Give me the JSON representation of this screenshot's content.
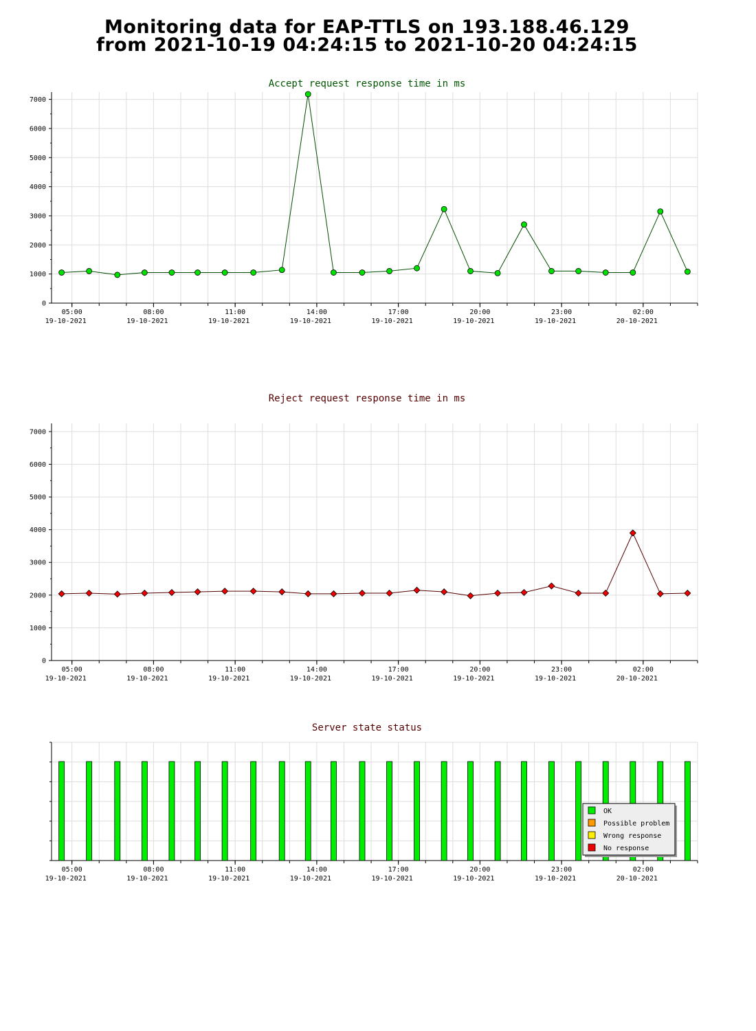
{
  "header": {
    "title_line1": "Monitoring data for EAP-TTLS on 193.188.46.129",
    "title_line2": "from 2021-10-19 04:24:15 to 2021-10-20 04:24:15"
  },
  "colors": {
    "accept_line": "#004d00",
    "accept_marker": "#00e000",
    "accept_title": "#005500",
    "reject_line": "#550000",
    "reject_marker": "#ee0000",
    "reject_title": "#550000",
    "ok": "#00ee00",
    "possible_problem": "#ff9900",
    "wrong_response": "#ffee00",
    "no_response": "#ee0000",
    "grid": "#dddddd"
  },
  "chart_data": [
    {
      "type": "line",
      "title": "Accept request response time in ms",
      "xlim": [
        4.25,
        28.0
      ],
      "ylim": [
        0,
        7250
      ],
      "y_ticks": [
        0,
        1000,
        2000,
        3000,
        4000,
        5000,
        6000,
        7000
      ],
      "x_tick_labels": [
        {
          "x": 5,
          "time": "05:00",
          "date": "19-10-2021"
        },
        {
          "x": 8,
          "time": "08:00",
          "date": "19-10-2021"
        },
        {
          "x": 11,
          "time": "11:00",
          "date": "19-10-2021"
        },
        {
          "x": 14,
          "time": "14:00",
          "date": "19-10-2021"
        },
        {
          "x": 17,
          "time": "17:00",
          "date": "19-10-2021"
        },
        {
          "x": 20,
          "time": "20:00",
          "date": "19-10-2021"
        },
        {
          "x": 23,
          "time": "23:00",
          "date": "19-10-2021"
        },
        {
          "x": 26,
          "time": "02:00",
          "date": "20-10-2021"
        }
      ],
      "series": [
        {
          "x": [
            4.62,
            5.63,
            6.67,
            7.67,
            8.67,
            9.62,
            10.62,
            11.67,
            12.72,
            13.68,
            14.62,
            15.67,
            16.67,
            17.68,
            18.68,
            19.65,
            20.65,
            21.62,
            22.63,
            23.62,
            24.62,
            25.62,
            26.63,
            27.63
          ],
          "values": [
            1050,
            1100,
            970,
            1050,
            1050,
            1050,
            1050,
            1050,
            1140,
            7180,
            1050,
            1050,
            1100,
            1200,
            3230,
            1100,
            1030,
            2700,
            1100,
            1100,
            1050,
            1050,
            3150,
            1080
          ]
        }
      ]
    },
    {
      "type": "line",
      "title": "Reject request response time in ms",
      "xlim": [
        4.25,
        28.0
      ],
      "ylim": [
        0,
        7250
      ],
      "y_ticks": [
        0,
        1000,
        2000,
        3000,
        4000,
        5000,
        6000,
        7000
      ],
      "x_tick_labels": [
        {
          "x": 5,
          "time": "05:00",
          "date": "19-10-2021"
        },
        {
          "x": 8,
          "time": "08:00",
          "date": "19-10-2021"
        },
        {
          "x": 11,
          "time": "11:00",
          "date": "19-10-2021"
        },
        {
          "x": 14,
          "time": "14:00",
          "date": "19-10-2021"
        },
        {
          "x": 17,
          "time": "17:00",
          "date": "19-10-2021"
        },
        {
          "x": 20,
          "time": "20:00",
          "date": "19-10-2021"
        },
        {
          "x": 23,
          "time": "23:00",
          "date": "19-10-2021"
        },
        {
          "x": 26,
          "time": "02:00",
          "date": "20-10-2021"
        }
      ],
      "series": [
        {
          "x": [
            4.62,
            5.63,
            6.67,
            7.67,
            8.67,
            9.62,
            10.62,
            11.67,
            12.72,
            13.68,
            14.62,
            15.67,
            16.67,
            17.68,
            18.68,
            19.65,
            20.65,
            21.62,
            22.63,
            23.62,
            24.62,
            25.62,
            26.63,
            27.63
          ],
          "values": [
            2040,
            2060,
            2030,
            2060,
            2080,
            2100,
            2120,
            2120,
            2100,
            2040,
            2040,
            2060,
            2060,
            2150,
            2100,
            1980,
            2060,
            2080,
            2280,
            2060,
            2060,
            3900,
            2040,
            2060
          ]
        }
      ]
    },
    {
      "type": "bar",
      "title": "Server state status",
      "xlim": [
        4.25,
        28.0
      ],
      "x_tick_labels": [
        {
          "x": 5,
          "time": "05:00",
          "date": "19-10-2021"
        },
        {
          "x": 8,
          "time": "08:00",
          "date": "19-10-2021"
        },
        {
          "x": 11,
          "time": "11:00",
          "date": "19-10-2021"
        },
        {
          "x": 14,
          "time": "14:00",
          "date": "19-10-2021"
        },
        {
          "x": 17,
          "time": "17:00",
          "date": "19-10-2021"
        },
        {
          "x": 20,
          "time": "20:00",
          "date": "19-10-2021"
        },
        {
          "x": 23,
          "time": "23:00",
          "date": "19-10-2021"
        },
        {
          "x": 26,
          "time": "02:00",
          "date": "20-10-2021"
        }
      ],
      "x": [
        4.62,
        5.63,
        6.67,
        7.67,
        8.67,
        9.62,
        10.62,
        11.67,
        12.72,
        13.68,
        14.62,
        15.67,
        16.67,
        17.68,
        18.68,
        19.65,
        20.65,
        21.62,
        22.63,
        23.62,
        24.62,
        25.62,
        26.63,
        27.63
      ],
      "status": [
        "OK",
        "OK",
        "OK",
        "OK",
        "OK",
        "OK",
        "OK",
        "OK",
        "OK",
        "OK",
        "OK",
        "OK",
        "OK",
        "OK",
        "OK",
        "OK",
        "OK",
        "OK",
        "OK",
        "OK",
        "OK",
        "OK",
        "OK",
        "OK"
      ],
      "legend": {
        "placement": "bottom-right",
        "items": [
          {
            "label": "OK",
            "color": "#00ee00"
          },
          {
            "label": "Possible problem",
            "color": "#ff9900"
          },
          {
            "label": "Wrong response",
            "color": "#ffee00"
          },
          {
            "label": "No response",
            "color": "#ee0000"
          }
        ]
      }
    }
  ]
}
